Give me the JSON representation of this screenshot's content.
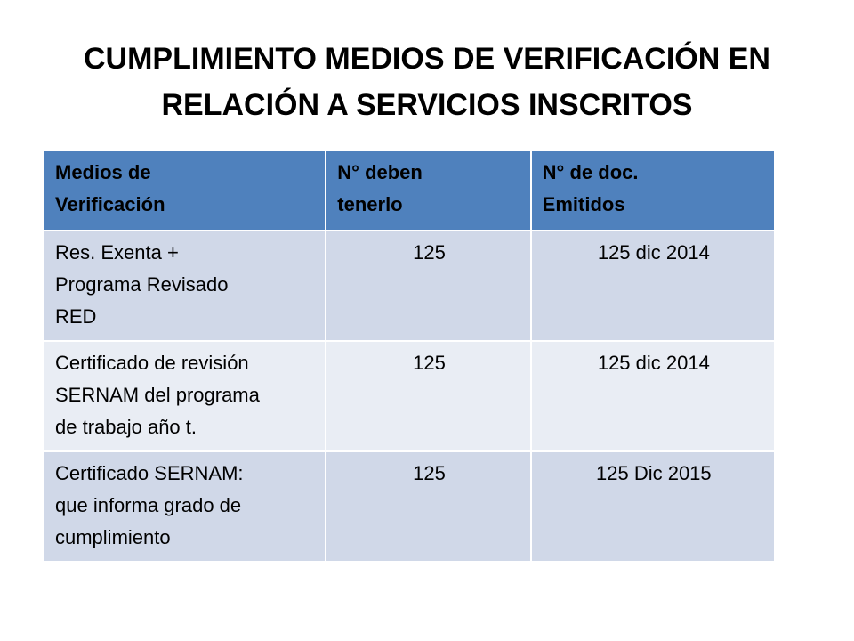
{
  "title": {
    "line1": "CUMPLIMIENTO MEDIOS DE VERIFICACIÓN EN",
    "line2": "RELACIÓN A SERVICIOS INSCRITOS"
  },
  "table": {
    "headers": {
      "col1_line1": "Medios de",
      "col1_line2": "Verificación",
      "col2_line1": "N° deben",
      "col2_line2": "tenerlo",
      "col3_line1": "N° de doc.",
      "col3_line2": "Emitidos"
    },
    "rows": [
      {
        "label_lines": [
          "Res. Exenta +",
          "Programa Revisado",
          "RED"
        ],
        "deben": "125",
        "emitidos": "125 dic 2014"
      },
      {
        "label_lines": [
          "Certificado de revisión",
          "SERNAM del programa",
          "de trabajo año t."
        ],
        "deben": "125",
        "emitidos": "125 dic 2014"
      },
      {
        "label_lines": [
          "Certificado SERNAM:",
          "que informa grado de",
          "cumplimiento"
        ],
        "deben": "125",
        "emitidos": "125 Dic 2015"
      }
    ]
  },
  "colors": {
    "header_bg": "#4f81bd",
    "row_odd_bg": "#d0d8e8",
    "row_even_bg": "#e9edf4"
  }
}
